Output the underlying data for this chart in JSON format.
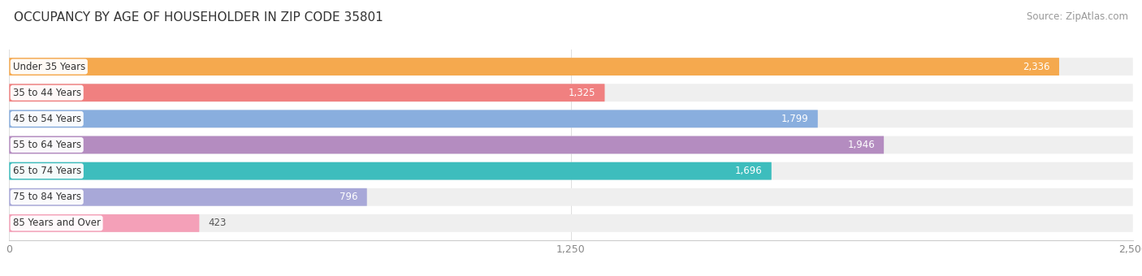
{
  "title": "OCCUPANCY BY AGE OF HOUSEHOLDER IN ZIP CODE 35801",
  "source": "Source: ZipAtlas.com",
  "categories": [
    "Under 35 Years",
    "35 to 44 Years",
    "45 to 54 Years",
    "55 to 64 Years",
    "65 to 74 Years",
    "75 to 84 Years",
    "85 Years and Over"
  ],
  "values": [
    2336,
    1325,
    1799,
    1946,
    1696,
    796,
    423
  ],
  "bar_colors": [
    "#F5A94E",
    "#F08080",
    "#89AEDE",
    "#B48CC0",
    "#3DBDBD",
    "#A8A8D8",
    "#F4A0B8"
  ],
  "bar_bg_color": "#EFEFEF",
  "xlim": [
    0,
    2500
  ],
  "xticks": [
    0,
    1250,
    2500
  ],
  "xtick_labels": [
    "0",
    "1,250",
    "2,500"
  ],
  "bar_height": 0.68,
  "bg_color": "#FFFFFF",
  "label_fontsize": 8.5,
  "value_fontsize": 8.5,
  "title_fontsize": 11,
  "source_fontsize": 8.5
}
